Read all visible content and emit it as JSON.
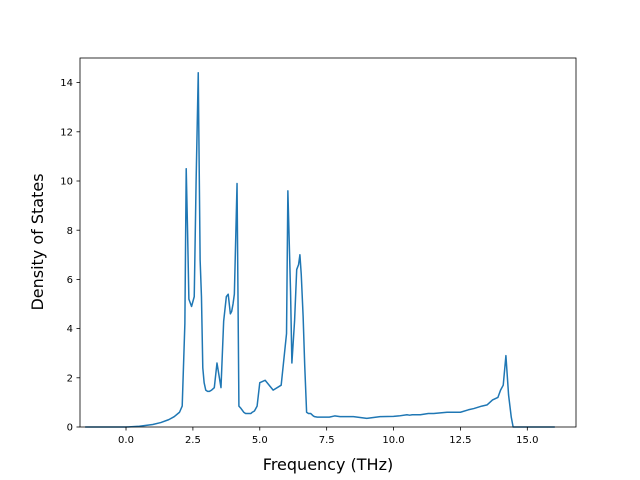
{
  "chart_data": {
    "type": "line",
    "title": "",
    "xlabel": "Frequency (THz)",
    "ylabel": "Density of States",
    "xlim": [
      -1.72,
      16.82
    ],
    "ylim": [
      0,
      15
    ],
    "x_ticks": [
      0.0,
      2.5,
      5.0,
      7.5,
      10.0,
      12.5,
      15.0
    ],
    "x_tick_labels": [
      "0.0",
      "2.5",
      "5.0",
      "7.5",
      "10.0",
      "12.5",
      "15.0"
    ],
    "y_ticks": [
      0,
      2,
      4,
      6,
      8,
      10,
      12,
      14
    ],
    "y_tick_labels": [
      "0",
      "2",
      "4",
      "6",
      "8",
      "10",
      "12",
      "14"
    ],
    "grid": false,
    "series": [
      {
        "color": "#1f77b4",
        "x": [
          -1.5,
          -1.0,
          -0.5,
          0.0,
          0.5,
          1.0,
          1.3,
          1.6,
          1.8,
          2.0,
          2.1,
          2.2,
          2.25,
          2.3,
          2.35,
          2.45,
          2.55,
          2.62,
          2.7,
          2.77,
          2.82,
          2.87,
          2.92,
          2.98,
          3.05,
          3.12,
          3.2,
          3.3,
          3.4,
          3.55,
          3.65,
          3.75,
          3.82,
          3.9,
          3.95,
          4.0,
          4.05,
          4.15,
          4.22,
          4.3,
          4.4,
          4.47,
          4.53,
          4.57,
          4.62,
          4.67,
          4.72,
          4.8,
          4.9,
          5.0,
          5.2,
          5.5,
          5.8,
          6.0,
          6.05,
          6.15,
          6.2,
          6.3,
          6.38,
          6.45,
          6.5,
          6.55,
          6.62,
          6.68,
          6.75,
          6.82,
          6.9,
          6.95,
          7.0,
          7.05,
          7.15,
          7.25,
          7.3,
          7.4,
          7.5,
          7.6,
          7.8,
          8.0,
          8.5,
          9.0,
          9.5,
          10.0,
          10.2,
          10.5,
          10.6,
          10.7,
          11.0,
          11.3,
          11.5,
          12.0,
          12.5,
          12.8,
          13.0,
          13.3,
          13.5,
          13.7,
          13.9,
          14.0,
          14.1,
          14.2,
          14.3,
          14.4,
          14.47,
          14.55,
          14.62,
          14.7,
          15.0,
          16.0
        ],
        "y": [
          0,
          0,
          0,
          0,
          0.03,
          0.1,
          0.18,
          0.3,
          0.42,
          0.6,
          0.85,
          4.2,
          10.5,
          8.0,
          5.2,
          4.9,
          5.3,
          10.0,
          14.4,
          6.8,
          5.3,
          2.4,
          1.8,
          1.5,
          1.45,
          1.45,
          1.5,
          1.6,
          2.6,
          1.6,
          4.3,
          5.3,
          5.4,
          4.6,
          4.7,
          5.0,
          5.4,
          9.9,
          0.85,
          0.75,
          0.6,
          0.55,
          0.55,
          0.55,
          0.55,
          0.55,
          0.6,
          0.65,
          0.85,
          1.8,
          1.9,
          1.5,
          1.7,
          3.8,
          9.6,
          5.5,
          2.6,
          4.3,
          6.4,
          6.6,
          7.0,
          6.2,
          4.5,
          2.5,
          0.6,
          0.55,
          0.55,
          0.5,
          0.45,
          0.42,
          0.4,
          0.4,
          0.4,
          0.4,
          0.4,
          0.4,
          0.45,
          0.42,
          0.42,
          0.35,
          0.42,
          0.43,
          0.45,
          0.5,
          0.48,
          0.5,
          0.5,
          0.55,
          0.55,
          0.6,
          0.6,
          0.7,
          0.75,
          0.85,
          0.9,
          1.1,
          1.2,
          1.5,
          1.7,
          2.9,
          1.3,
          0.4,
          0,
          0,
          0,
          0,
          0,
          0
        ]
      }
    ]
  }
}
